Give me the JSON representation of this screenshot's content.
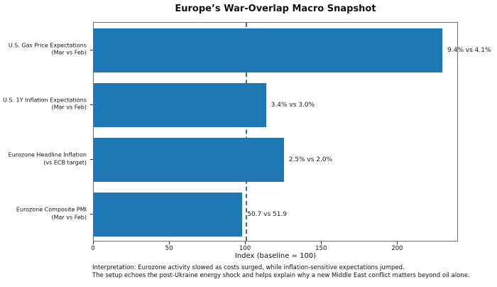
{
  "title": "Europe’s War-Overlap Macro Snapshot",
  "chart_data": {
    "type": "bar",
    "orientation": "horizontal",
    "title": "Europe’s War-Overlap Macro Snapshot",
    "categories": [
      [
        "U.S. Gas Price Expectations",
        "(Mar vs Feb)"
      ],
      [
        "U.S. 1Y Inflation Expectations",
        "(Mar vs Feb)"
      ],
      [
        "Eurozone Headline Inflation",
        "(vs ECB target)"
      ],
      [
        "Eurozone Composite PMI",
        "(Mar vs Feb)"
      ]
    ],
    "values": [
      229.3,
      113.3,
      125.0,
      97.7
    ],
    "bar_labels": [
      "9.4% vs 4.1%",
      "3.4% vs 3.0%",
      "2.5% vs 2.0%",
      "50.7 vs 51.9"
    ],
    "xlabel": "Index (baseline = 100)",
    "xticks": [
      0,
      50,
      100,
      150,
      200
    ],
    "xlim": [
      0,
      240
    ],
    "baseline": 100,
    "bar_color": "#1f77b4",
    "baseline_line_color": "#36718f",
    "grid": false,
    "legend_position": "none"
  },
  "footer": {
    "line1": "Interpretation: Eurozone activity slowed as costs surged, while inflation-sensitive expectations jumped.",
    "line2": "The setup echoes the post-Ukraine energy shock and helps explain why a new Middle East conflict matters beyond oil alone."
  }
}
